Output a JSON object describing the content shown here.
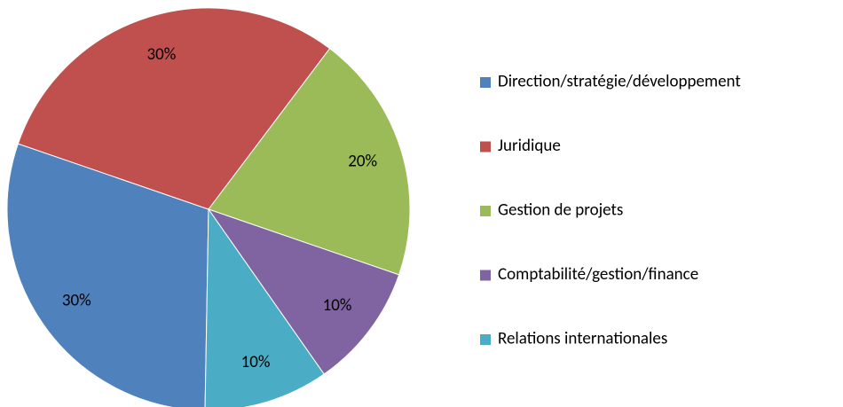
{
  "chart_data": {
    "type": "pie",
    "categories": [
      "Direction/stratégie/développement",
      "Juridique",
      "Gestion de projets",
      "Comptabilité/gestion/finance",
      "Relations internationales"
    ],
    "values": [
      30,
      30,
      20,
      10,
      10
    ],
    "value_labels": [
      "30%",
      "30%",
      "20%",
      "10%",
      "10%"
    ],
    "colors": [
      "#4f81bd",
      "#c0504d",
      "#9bbb59",
      "#8064a2",
      "#4bacc6"
    ],
    "legend": "right"
  }
}
